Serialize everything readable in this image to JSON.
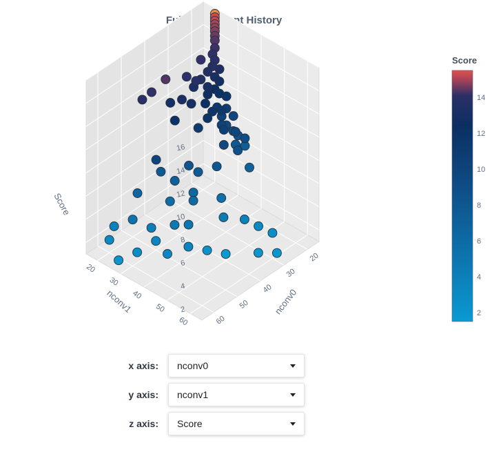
{
  "chart_data": {
    "type": "scatter",
    "title": "Full Experiment History",
    "x_axis": {
      "label": "nconv0",
      "ticks": [
        20,
        30,
        40,
        50,
        60
      ],
      "range": [
        15,
        65
      ]
    },
    "y_axis": {
      "label": "nconv1",
      "ticks": [
        20,
        30,
        40,
        50,
        60
      ],
      "range": [
        15,
        65
      ]
    },
    "z_axis": {
      "label": "Score",
      "ticks": [
        2,
        4,
        6,
        8,
        10,
        12,
        14,
        16
      ],
      "range": [
        1,
        16
      ]
    },
    "colorbar": {
      "title": "Score",
      "ticks": [
        2,
        4,
        6,
        8,
        10,
        12,
        14
      ],
      "range": [
        1.5,
        15.5
      ]
    },
    "colorscale": [
      "#0a9ad1",
      "#0d6ea8",
      "#0f4b84",
      "#0b2f62",
      "#35306a",
      "#e0524a"
    ],
    "points": [
      {
        "x": 15,
        "y": 20,
        "z": 15.5
      },
      {
        "x": 15,
        "y": 20,
        "z": 15.2
      },
      {
        "x": 15,
        "y": 20,
        "z": 14.9
      },
      {
        "x": 15,
        "y": 20,
        "z": 14.6
      },
      {
        "x": 15,
        "y": 20,
        "z": 14.3
      },
      {
        "x": 15,
        "y": 20,
        "z": 14.0
      },
      {
        "x": 15,
        "y": 20,
        "z": 13.6
      },
      {
        "x": 15,
        "y": 20,
        "z": 13.2
      },
      {
        "x": 16,
        "y": 21,
        "z": 12.8
      },
      {
        "x": 17,
        "y": 21,
        "z": 12.4
      },
      {
        "x": 17,
        "y": 22,
        "z": 12.0
      },
      {
        "x": 18,
        "y": 22,
        "z": 11.6
      },
      {
        "x": 16,
        "y": 23,
        "z": 11.2
      },
      {
        "x": 18,
        "y": 23,
        "z": 10.8
      },
      {
        "x": 17,
        "y": 24,
        "z": 10.4
      },
      {
        "x": 19,
        "y": 24,
        "z": 10.0
      },
      {
        "x": 18,
        "y": 25,
        "z": 9.6
      },
      {
        "x": 16,
        "y": 26,
        "z": 9.2
      },
      {
        "x": 20,
        "y": 26,
        "z": 8.8
      },
      {
        "x": 17,
        "y": 27,
        "z": 8.4
      },
      {
        "x": 19,
        "y": 27,
        "z": 8.0
      },
      {
        "x": 15,
        "y": 28,
        "z": 7.6
      },
      {
        "x": 18,
        "y": 28,
        "z": 7.2
      },
      {
        "x": 17,
        "y": 30,
        "z": 6.8
      },
      {
        "x": 16,
        "y": 31,
        "z": 6.4
      },
      {
        "x": 18,
        "y": 32,
        "z": 6.0
      },
      {
        "x": 15,
        "y": 33,
        "z": 5.6
      },
      {
        "x": 22,
        "y": 21,
        "z": 12.6
      },
      {
        "x": 24,
        "y": 23,
        "z": 11.4
      },
      {
        "x": 26,
        "y": 22,
        "z": 10.9
      },
      {
        "x": 23,
        "y": 25,
        "z": 10.2
      },
      {
        "x": 25,
        "y": 26,
        "z": 9.8
      },
      {
        "x": 21,
        "y": 29,
        "z": 9.0
      },
      {
        "x": 27,
        "y": 24,
        "z": 11.8
      },
      {
        "x": 29,
        "y": 22,
        "z": 12.2
      },
      {
        "x": 30,
        "y": 28,
        "z": 8.6
      },
      {
        "x": 28,
        "y": 30,
        "z": 9.4
      },
      {
        "x": 31,
        "y": 26,
        "z": 10.6
      },
      {
        "x": 33,
        "y": 24,
        "z": 11.0
      },
      {
        "x": 24,
        "y": 33,
        "z": 8.2
      },
      {
        "x": 26,
        "y": 35,
        "z": 7.4
      },
      {
        "x": 22,
        "y": 37,
        "z": 6.6
      },
      {
        "x": 20,
        "y": 40,
        "z": 5.2
      },
      {
        "x": 30,
        "y": 36,
        "z": 6.2
      },
      {
        "x": 34,
        "y": 32,
        "z": 5.8
      },
      {
        "x": 36,
        "y": 30,
        "z": 6.4
      },
      {
        "x": 38,
        "y": 34,
        "z": 4.8
      },
      {
        "x": 40,
        "y": 28,
        "z": 5.4
      },
      {
        "x": 42,
        "y": 24,
        "z": 6.0
      },
      {
        "x": 44,
        "y": 30,
        "z": 4.4
      },
      {
        "x": 46,
        "y": 26,
        "z": 7.8
      },
      {
        "x": 48,
        "y": 36,
        "z": 3.6
      },
      {
        "x": 50,
        "y": 22,
        "z": 5.0
      },
      {
        "x": 52,
        "y": 30,
        "z": 3.2
      },
      {
        "x": 54,
        "y": 34,
        "z": 2.8
      },
      {
        "x": 56,
        "y": 26,
        "z": 4.0
      },
      {
        "x": 58,
        "y": 20,
        "z": 3.0
      },
      {
        "x": 60,
        "y": 32,
        "z": 2.4
      },
      {
        "x": 62,
        "y": 22,
        "z": 2.6
      },
      {
        "x": 64,
        "y": 28,
        "z": 1.8
      },
      {
        "x": 38,
        "y": 22,
        "z": 13.2
      },
      {
        "x": 42,
        "y": 20,
        "z": 12.4
      },
      {
        "x": 44,
        "y": 18,
        "z": 11.8
      },
      {
        "x": 32,
        "y": 40,
        "z": 4.2
      },
      {
        "x": 35,
        "y": 44,
        "z": 3.4
      },
      {
        "x": 30,
        "y": 48,
        "z": 3.0
      },
      {
        "x": 28,
        "y": 52,
        "z": 2.6
      },
      {
        "x": 26,
        "y": 56,
        "z": 2.2
      },
      {
        "x": 40,
        "y": 50,
        "z": 1.6
      },
      {
        "x": 44,
        "y": 46,
        "z": 2.0
      },
      {
        "x": 34,
        "y": 58,
        "z": 1.8
      },
      {
        "x": 30,
        "y": 62,
        "z": 1.7
      },
      {
        "x": 18,
        "y": 36,
        "z": 7.0
      },
      {
        "x": 20,
        "y": 34,
        "z": 7.6
      },
      {
        "x": 22,
        "y": 30,
        "z": 8.0
      },
      {
        "x": 24,
        "y": 28,
        "z": 9.2
      },
      {
        "x": 36,
        "y": 24,
        "z": 9.6
      },
      {
        "x": 34,
        "y": 20,
        "z": 10.4
      },
      {
        "x": 40,
        "y": 36,
        "z": 4.6
      },
      {
        "x": 46,
        "y": 40,
        "z": 3.8
      },
      {
        "x": 50,
        "y": 44,
        "z": 2.9
      },
      {
        "x": 55,
        "y": 40,
        "z": 2.5
      },
      {
        "x": 20,
        "y": 22,
        "z": 11.4
      },
      {
        "x": 22,
        "y": 24,
        "z": 10.6
      }
    ]
  },
  "controls": {
    "x": {
      "label": "x axis:",
      "value": "nconv0"
    },
    "y": {
      "label": "y axis:",
      "value": "nconv1"
    },
    "z": {
      "label": "z axis:",
      "value": "Score"
    }
  }
}
